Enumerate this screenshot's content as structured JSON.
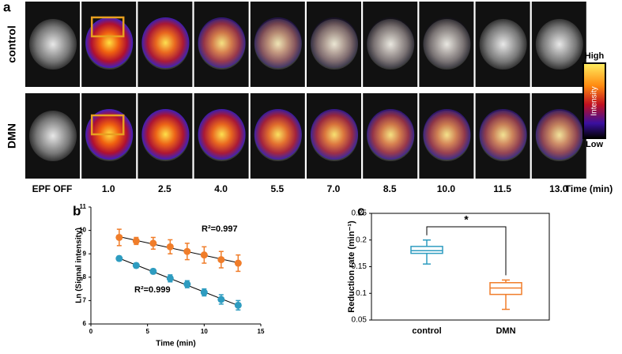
{
  "panel_labels": [
    "a",
    "b",
    "c"
  ],
  "panel_a": {
    "row_labels": [
      "control",
      "DMN"
    ],
    "time_labels": [
      "EPF OFF",
      "1.0",
      "2.5",
      "4.0",
      "5.5",
      "7.0",
      "8.5",
      "10.0",
      "11.5",
      "13.0"
    ],
    "time_axis_label": "Time (min)",
    "colorbar": {
      "high": "High",
      "title": "Intensity",
      "low": "Low"
    }
  },
  "chart_data": [
    {
      "type": "scatter",
      "x_label": "Time (min)",
      "y_label": "Ln (Signal intensity)",
      "x": [
        2.5,
        4,
        5.5,
        7,
        8.5,
        10,
        11.5,
        13
      ],
      "series": [
        {
          "color": "#f07d2a",
          "values": [
            9.7,
            9.55,
            9.45,
            9.3,
            9.1,
            8.95,
            8.75,
            8.6
          ],
          "errors": [
            0.35,
            0.15,
            0.25,
            0.3,
            0.35,
            0.35,
            0.35,
            0.35
          ]
        },
        {
          "color": "#2e9cc0",
          "values": [
            8.8,
            8.5,
            8.25,
            7.95,
            7.7,
            7.35,
            7.05,
            6.8
          ],
          "errors": [
            0.1,
            0.1,
            0.1,
            0.15,
            0.15,
            0.15,
            0.2,
            0.2
          ]
        }
      ],
      "annotations": [
        "R²=0.997",
        "R²=0.999"
      ],
      "xlim": [
        0,
        15
      ],
      "xticks": [
        0,
        5,
        10,
        15
      ],
      "ylim": [
        6,
        11
      ],
      "yticks": [
        6,
        7,
        8,
        9,
        10,
        11
      ]
    },
    {
      "type": "box",
      "y_label": "Reduction rate (min⁻¹)",
      "categories": [
        "control",
        "DMN"
      ],
      "colors": [
        "#2e9cc0",
        "#f07d2a"
      ],
      "boxes": [
        {
          "min": 0.155,
          "q1": 0.175,
          "median": 0.18,
          "q3": 0.188,
          "max": 0.2
        },
        {
          "min": 0.07,
          "q1": 0.098,
          "median": 0.11,
          "q3": 0.12,
          "max": 0.125
        }
      ],
      "significance": "*",
      "ylim": [
        0.05,
        0.25
      ],
      "yticks": [
        0.05,
        0.1,
        0.15,
        0.2,
        0.25
      ]
    }
  ]
}
